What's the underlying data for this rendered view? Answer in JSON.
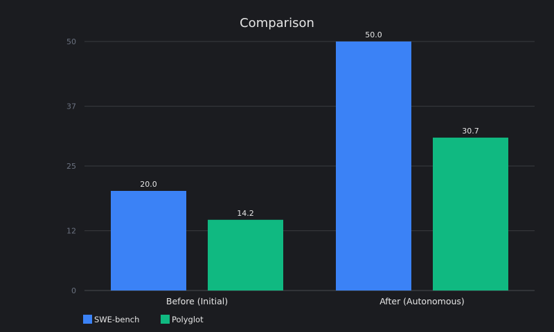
{
  "chart_data": {
    "type": "bar",
    "title": "Comparison",
    "categories": [
      "Before (Initial)",
      "After (Autonomous)"
    ],
    "series": [
      {
        "name": "SWE-bench",
        "values": [
          20.0,
          50.0
        ],
        "color": "#3b82f6"
      },
      {
        "name": "Polyglot",
        "values": [
          14.2,
          30.7
        ],
        "color": "#10b981"
      }
    ],
    "ylim": [
      0,
      50
    ],
    "yticks": [
      0,
      12,
      25,
      37,
      50
    ],
    "grid": true,
    "legend": "bottom-left",
    "xlabel": "",
    "ylabel": ""
  }
}
